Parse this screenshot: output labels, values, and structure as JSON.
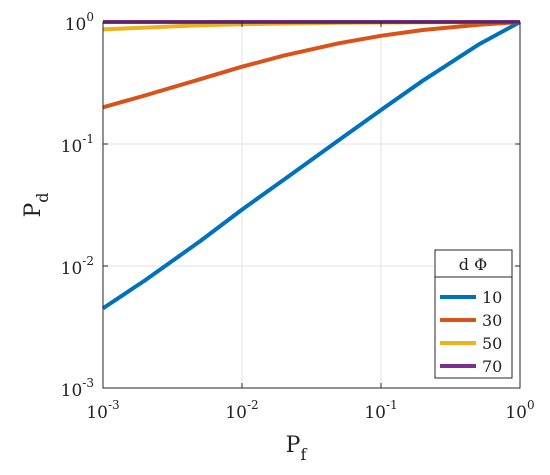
{
  "chart_data": {
    "type": "line",
    "xlabel": {
      "main": "P",
      "sub": "f"
    },
    "ylabel": {
      "main": "P",
      "sub": "d"
    },
    "x_scale": "log",
    "y_scale": "log",
    "xlim": [
      0.001,
      1
    ],
    "ylim": [
      0.001,
      1
    ],
    "grid": true,
    "x_ticks": [
      {
        "value": 0.001,
        "base": "10",
        "exp": "-3"
      },
      {
        "value": 0.01,
        "base": "10",
        "exp": "-2"
      },
      {
        "value": 0.1,
        "base": "10",
        "exp": "-1"
      },
      {
        "value": 1,
        "base": "10",
        "exp": "0"
      }
    ],
    "y_ticks": [
      {
        "value": 0.001,
        "base": "10",
        "exp": "-3"
      },
      {
        "value": 0.01,
        "base": "10",
        "exp": "-2"
      },
      {
        "value": 0.1,
        "base": "10",
        "exp": "-1"
      },
      {
        "value": 1,
        "base": "10",
        "exp": "0"
      }
    ],
    "legend": {
      "title": "d Φ",
      "position": "bottom-right"
    },
    "series": [
      {
        "name": "10",
        "color": "#0072BD",
        "x": [
          0.001,
          0.002,
          0.005,
          0.01,
          0.02,
          0.05,
          0.1,
          0.2,
          0.5,
          1
        ],
        "y": [
          0.0045,
          0.0076,
          0.016,
          0.029,
          0.051,
          0.108,
          0.19,
          0.33,
          0.65,
          1
        ]
      },
      {
        "name": "30",
        "color": "#D95319",
        "x": [
          0.001,
          0.002,
          0.005,
          0.01,
          0.02,
          0.05,
          0.1,
          0.2,
          0.5,
          1
        ],
        "y": [
          0.2,
          0.25,
          0.34,
          0.43,
          0.53,
          0.67,
          0.77,
          0.86,
          0.95,
          1
        ]
      },
      {
        "name": "50",
        "color": "#EDB120",
        "x": [
          0.001,
          0.002,
          0.005,
          0.01,
          0.02,
          0.05,
          0.1,
          0.2,
          0.5,
          1
        ],
        "y": [
          0.87,
          0.9,
          0.94,
          0.96,
          0.97,
          0.985,
          0.99,
          0.995,
          0.999,
          1
        ]
      },
      {
        "name": "70",
        "color": "#7E2F8E",
        "x": [
          0.001,
          0.01,
          0.1,
          1
        ],
        "y": [
          1,
          1,
          1,
          1
        ]
      }
    ]
  }
}
